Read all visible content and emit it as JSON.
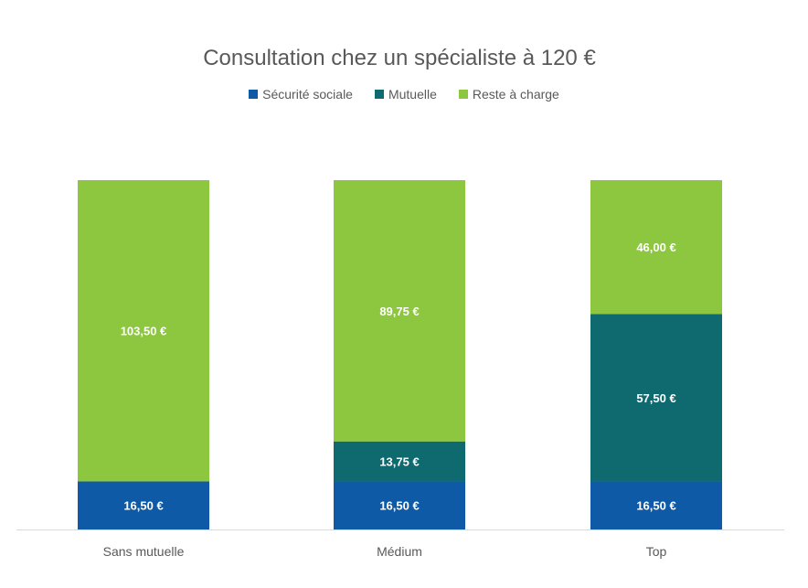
{
  "chart_data": {
    "type": "bar",
    "stacked": true,
    "title": "Consultation chez un spécialiste à 120 €",
    "xlabel": "",
    "ylabel": "",
    "ylim": [
      0,
      120
    ],
    "grid": false,
    "legend_position": "top",
    "categories": [
      "Sans mutuelle",
      "Médium",
      "Top"
    ],
    "series": [
      {
        "name": "Sécurité sociale",
        "color": "#0e5aa7",
        "values": [
          16.5,
          16.5,
          16.5
        ],
        "labels": [
          "16,50 €",
          "16,50 €",
          "16,50 €"
        ]
      },
      {
        "name": "Mutuelle",
        "color": "#0e6a6e",
        "values": [
          0,
          13.75,
          57.5
        ],
        "labels": [
          "",
          "13,75 €",
          "57,50 €"
        ]
      },
      {
        "name": "Reste à charge",
        "color": "#8dc63f",
        "values": [
          103.5,
          89.75,
          46
        ],
        "labels": [
          "103,50 €",
          "89,75 €",
          "46,00 €"
        ]
      }
    ]
  }
}
